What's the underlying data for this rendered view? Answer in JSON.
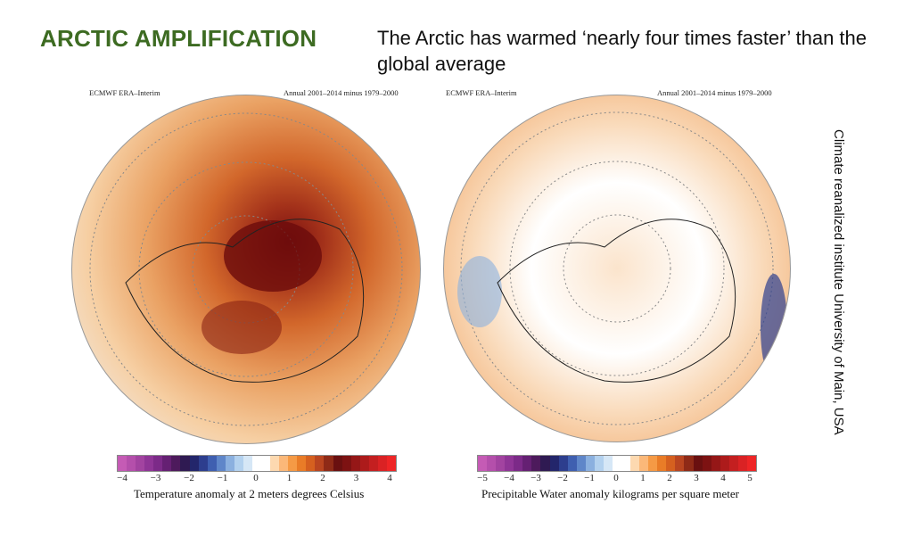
{
  "slide": {
    "title": "ARCTIC AMPLIFICATION",
    "subtitle": "The Arctic has warmed ‘nearly four times faster’ than the global average",
    "source_vertical": "Climate reanalized institute University of Main, USA",
    "title_color": "#3d6b22"
  },
  "panels": [
    {
      "source": "ECMWF ERA–Interim",
      "period": "Annual 2001–2014 minus 1979–2000",
      "caption": "Temperature anomaly at 2 meters degrees Celsius",
      "ticks": [
        "−4",
        "−3",
        "−2",
        "−1",
        "0",
        "1",
        "2",
        "3",
        "4"
      ]
    },
    {
      "source": "ECMWF ERA–Interim",
      "period": "Annual 2001–2014 minus 1979–2000",
      "caption": "Precipitable Water anomaly kilograms per square meter",
      "ticks": [
        "−5",
        "−4",
        "−3",
        "−2",
        "−1",
        "0",
        "1",
        "2",
        "3",
        "4",
        "5"
      ]
    }
  ],
  "colorbar_colors": [
    "#c55bb5",
    "#b44fab",
    "#a243a0",
    "#8f3596",
    "#7c2a88",
    "#652073",
    "#4d1a5c",
    "#2f1a52",
    "#23266b",
    "#2d3e8e",
    "#3f5fb0",
    "#5f86c9",
    "#8bb0df",
    "#b3d1ee",
    "#d6e7f6",
    "#ffffff",
    "#ffffff",
    "#fdd9b0",
    "#fbb879",
    "#f59a45",
    "#e97c27",
    "#d5601f",
    "#b94520",
    "#8f2a17",
    "#6a1010",
    "#7d1212",
    "#951717",
    "#ad1b1b",
    "#c41f20",
    "#da2224",
    "#ee2526"
  ]
}
